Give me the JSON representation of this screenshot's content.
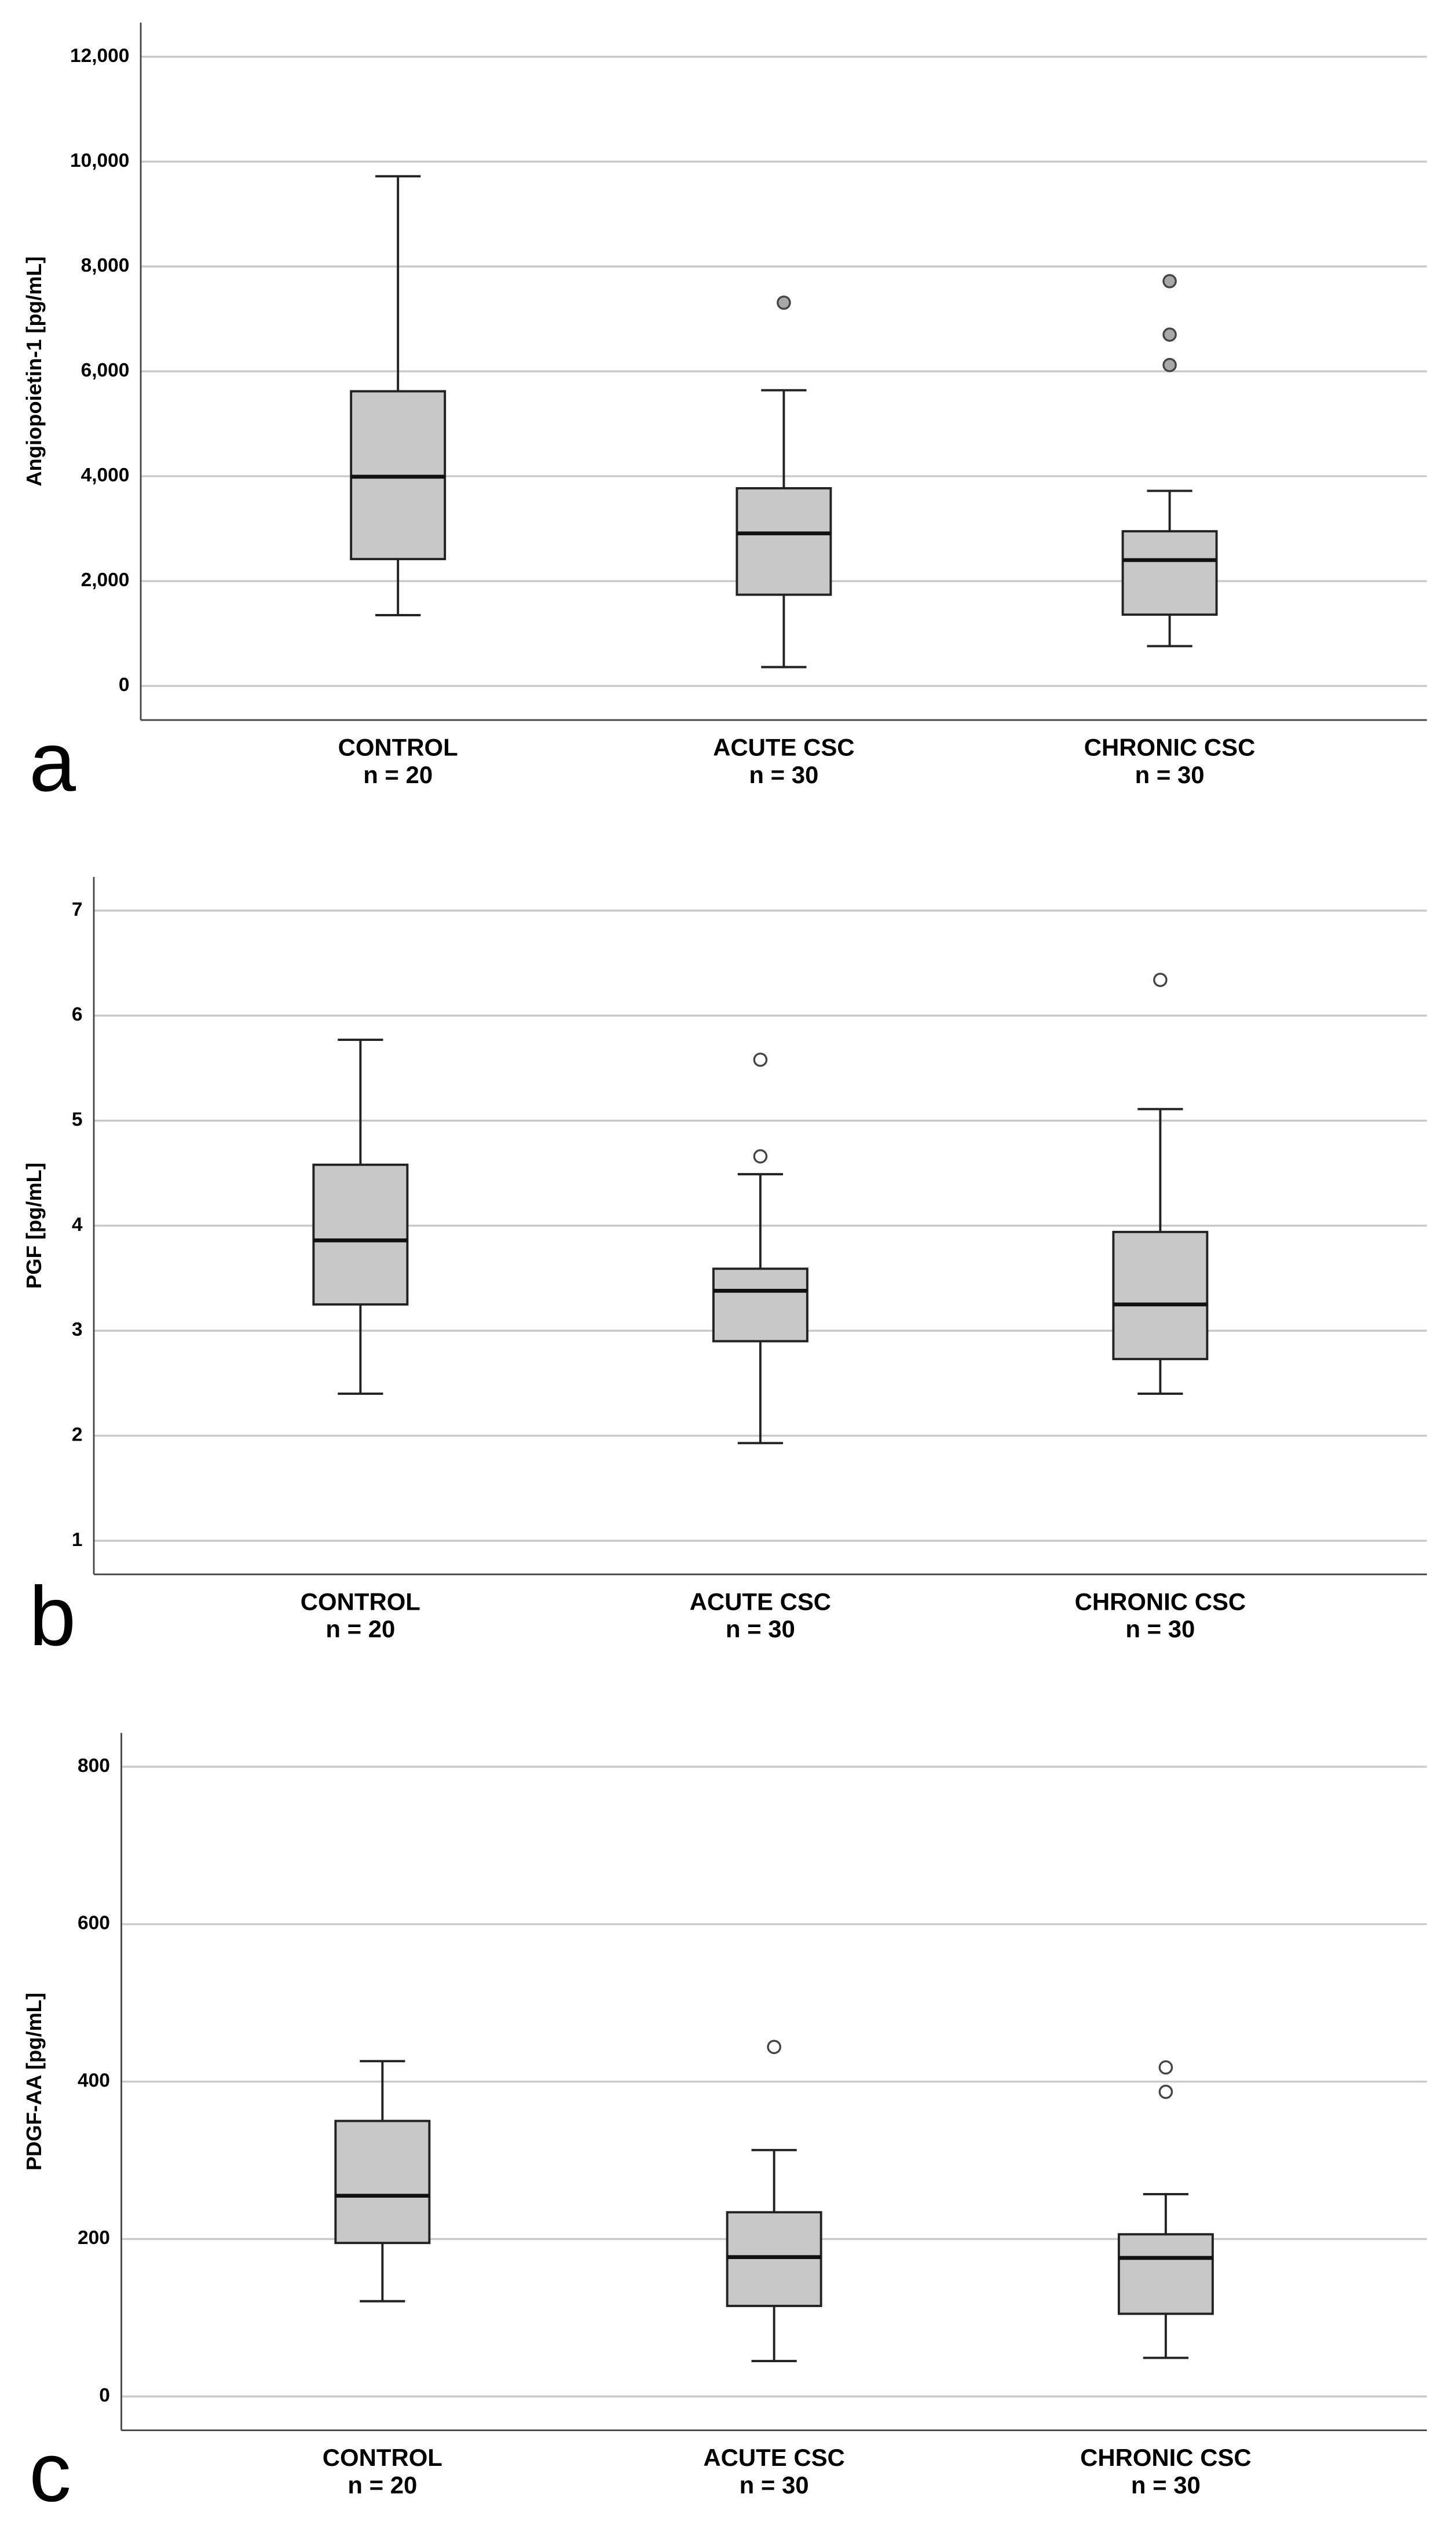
{
  "chart_data": [
    {
      "type": "box",
      "panel_label": "a",
      "ylabel": "Angiopoietin-1 [pg/mL]",
      "categories": [
        "CONTROL",
        "ACUTE CSC",
        "CHRONIC CSC"
      ],
      "group_sizes": [
        "n = 20",
        "n = 30",
        "n = 30"
      ],
      "ylim": [
        -650,
        12650
      ],
      "yticks": [
        0,
        {
          "value": 2000,
          "label": "2,000"
        },
        {
          "value": 4000,
          "label": "4,000"
        },
        {
          "value": 6000,
          "label": "6,000"
        },
        {
          "value": 8000,
          "label": "8,000"
        },
        {
          "value": 10000,
          "label": "10,000"
        },
        {
          "value": 12000,
          "label": "12,000"
        }
      ],
      "grid": true,
      "box_color": "#c8c8c8",
      "outlier_fill": "#a8a8a8",
      "boxes": [
        {
          "whisker_low": 1350,
          "q1": 2420,
          "median": 3990,
          "q3": 5620,
          "whisker_high": 9720,
          "outliers": []
        },
        {
          "whisker_low": 360,
          "q1": 1740,
          "median": 2910,
          "q3": 3770,
          "whisker_high": 5640,
          "outliers": [
            7310
          ]
        },
        {
          "whisker_low": 760,
          "q1": 1360,
          "median": 2400,
          "q3": 2950,
          "whisker_high": 3720,
          "outliers": [
            7720,
            6700,
            6120
          ]
        }
      ]
    },
    {
      "type": "box",
      "panel_label": "b",
      "ylabel": "PGF [pg/mL]",
      "categories": [
        "CONTROL",
        "ACUTE CSC",
        "CHRONIC CSC"
      ],
      "group_sizes": [
        "n = 20",
        "n = 30",
        "n = 30"
      ],
      "ylim": [
        0.68,
        7.32
      ],
      "yticks": [
        1,
        2,
        3,
        4,
        5,
        6,
        7
      ],
      "grid": true,
      "box_color": "#c8c8c8",
      "outlier_fill": "#ffffff",
      "boxes": [
        {
          "whisker_low": 2.4,
          "q1": 3.25,
          "median": 3.86,
          "q3": 4.58,
          "whisker_high": 5.77,
          "outliers": []
        },
        {
          "whisker_low": 1.93,
          "q1": 2.9,
          "median": 3.38,
          "q3": 3.59,
          "whisker_high": 4.49,
          "outliers": [
            4.66,
            5.58
          ]
        },
        {
          "whisker_low": 2.4,
          "q1": 2.73,
          "median": 3.25,
          "q3": 3.94,
          "whisker_high": 5.11,
          "outliers": [
            6.34
          ]
        }
      ]
    },
    {
      "type": "box",
      "panel_label": "c",
      "ylabel": "PDGF-AA [pg/mL]",
      "categories": [
        "CONTROL",
        "ACUTE CSC",
        "CHRONIC CSC"
      ],
      "group_sizes": [
        "n = 20",
        "n = 30",
        "n = 30"
      ],
      "ylim": [
        -43,
        843
      ],
      "yticks": [
        0,
        200,
        400,
        600,
        800
      ],
      "grid": true,
      "box_color": "#c8c8c8",
      "outlier_fill": "#ffffff",
      "boxes": [
        {
          "whisker_low": 121,
          "q1": 195,
          "median": 255,
          "q3": 350,
          "whisker_high": 426,
          "outliers": []
        },
        {
          "whisker_low": 45,
          "q1": 115,
          "median": 177,
          "q3": 234,
          "whisker_high": 313,
          "outliers": [
            444
          ]
        },
        {
          "whisker_low": 49,
          "q1": 105,
          "median": 176,
          "q3": 206,
          "whisker_high": 257,
          "outliers": [
            418,
            387
          ]
        }
      ]
    }
  ]
}
